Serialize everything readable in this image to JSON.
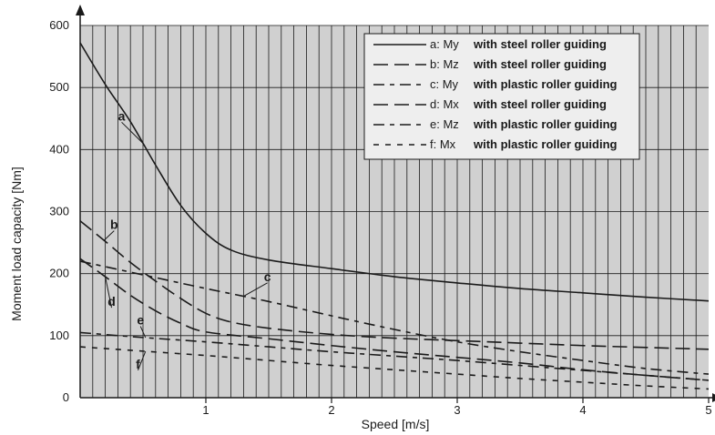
{
  "colors": {
    "plot_background": "#d0d0d0",
    "grid": "#1a1a1a",
    "line": "#1a1a1a",
    "legend_background": "#eeeeee"
  },
  "chart_data": {
    "type": "line",
    "xlabel": "Speed [m/s]",
    "ylabel": "Moment load capacity [Nm]",
    "xlim": [
      0,
      5
    ],
    "ylim": [
      0,
      600
    ],
    "x_ticks": [
      1,
      2,
      3,
      4,
      5
    ],
    "y_ticks": [
      0,
      100,
      200,
      300,
      400,
      500,
      600
    ],
    "grid": "on",
    "legend_position": "top-right",
    "series": [
      {
        "id": "a",
        "key": "a: My",
        "description": "with steel roller guiding",
        "dash": "solid",
        "x": [
          0,
          0.2,
          0.4,
          0.6,
          0.8,
          1.0,
          1.2,
          1.5,
          2.0,
          2.5,
          3.0,
          3.5,
          4.0,
          4.5,
          5.0
        ],
        "y": [
          572,
          505,
          445,
          375,
          310,
          265,
          238,
          222,
          208,
          195,
          185,
          176,
          169,
          162,
          156
        ]
      },
      {
        "id": "b",
        "key": "b: Mz",
        "description": "with steel roller guiding",
        "dash": "long",
        "x": [
          0,
          0.2,
          0.4,
          0.6,
          0.8,
          1.0,
          1.2,
          1.5,
          2.0,
          2.5,
          3.0,
          3.5,
          4.0,
          4.5,
          5.0
        ],
        "y": [
          285,
          252,
          218,
          188,
          160,
          136,
          122,
          112,
          102,
          96,
          92,
          88,
          84,
          81,
          78
        ]
      },
      {
        "id": "c",
        "key": "c: My",
        "description": "with plastic roller guiding",
        "dash": "mixed",
        "x": [
          0,
          0.5,
          1.0,
          1.5,
          2.0,
          2.5,
          3.0,
          3.5,
          4.0,
          4.5,
          5.0
        ],
        "y": [
          220,
          198,
          176,
          155,
          132,
          110,
          90,
          74,
          60,
          47,
          38
        ]
      },
      {
        "id": "d",
        "key": "d: Mx",
        "description": "with steel roller guiding",
        "dash": "long",
        "x": [
          0,
          0.2,
          0.4,
          0.6,
          0.8,
          1.0,
          1.5,
          2.0,
          2.5,
          3.0,
          3.5,
          4.0,
          4.5,
          5.0
        ],
        "y": [
          224,
          195,
          165,
          140,
          120,
          106,
          95,
          84,
          74,
          65,
          56,
          45,
          36,
          28
        ]
      },
      {
        "id": "e",
        "key": "e: Mz",
        "description": "with plastic roller guiding",
        "dash": "mixed",
        "x": [
          0,
          0.5,
          1.0,
          1.5,
          2.0,
          2.5,
          3.0,
          3.5,
          4.0,
          4.5,
          5.0
        ],
        "y": [
          105,
          97,
          90,
          82,
          74,
          67,
          60,
          52,
          44,
          36,
          28
        ]
      },
      {
        "id": "f",
        "key": "f: Mx",
        "description": "with plastic roller guiding",
        "dash": "short",
        "x": [
          0,
          0.5,
          1.0,
          1.5,
          2.0,
          2.5,
          3.0,
          3.5,
          4.0,
          4.5,
          5.0
        ],
        "y": [
          82,
          75,
          68,
          60,
          52,
          45,
          38,
          31,
          25,
          19,
          14
        ]
      }
    ],
    "annotations": [
      {
        "label": "a",
        "series": "a",
        "at_x": 0.5,
        "text_x": 0.33,
        "text_y": 447
      },
      {
        "label": "b",
        "series": "b",
        "at_x": 0.19,
        "text_x": 0.27,
        "text_y": 272
      },
      {
        "label": "c",
        "series": "c",
        "at_x": 1.3,
        "text_x": 1.49,
        "text_y": 188
      },
      {
        "label": "d",
        "series": "d",
        "at_x": 0.2,
        "text_x": 0.25,
        "text_y": 148
      },
      {
        "label": "e",
        "series": "e",
        "at_x": 0.52,
        "text_x": 0.48,
        "text_y": 118
      },
      {
        "label": "f",
        "series": "f",
        "at_x": 0.52,
        "text_x": 0.46,
        "text_y": 47
      }
    ]
  }
}
